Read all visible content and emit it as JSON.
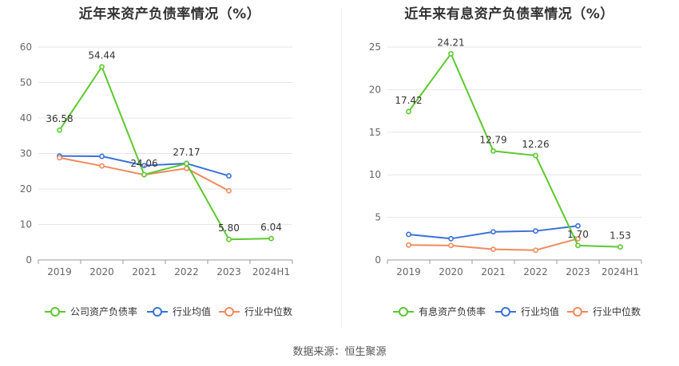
{
  "source_label": "数据来源：恒生聚源",
  "colors": {
    "company": "#5cc82f",
    "avg": "#3a71d6",
    "median": "#f08a5d",
    "grid": "#e6e6e6",
    "axis": "#999999",
    "text": "#666666"
  },
  "chart_data": [
    {
      "type": "line",
      "title": "近年来资产负债率情况（%）",
      "categories": [
        "2019",
        "2020",
        "2021",
        "2022",
        "2023",
        "2024H1"
      ],
      "ylim": [
        0,
        60
      ],
      "yticks": [
        0,
        10,
        20,
        30,
        40,
        50,
        60
      ],
      "grid": true,
      "legend_position": "bottom",
      "series": [
        {
          "name": "公司资产负债率",
          "key": "company",
          "values": [
            36.58,
            54.44,
            24.06,
            27.17,
            5.8,
            6.04
          ],
          "labels": [
            "36.58",
            "54.44",
            "24.06",
            "27.17",
            "5.80",
            "6.04"
          ]
        },
        {
          "name": "行业均值",
          "key": "avg",
          "values": [
            29.3,
            29.2,
            26.6,
            27.2,
            23.7,
            null
          ]
        },
        {
          "name": "行业中位数",
          "key": "median",
          "values": [
            28.8,
            26.5,
            24.0,
            25.8,
            19.5,
            null
          ]
        }
      ]
    },
    {
      "type": "line",
      "title": "近年来有息资产负债率情况（%）",
      "categories": [
        "2019",
        "2020",
        "2021",
        "2022",
        "2023",
        "2024H1"
      ],
      "ylim": [
        0,
        25
      ],
      "yticks": [
        0,
        5,
        10,
        15,
        20,
        25
      ],
      "grid": true,
      "legend_position": "bottom",
      "series": [
        {
          "name": "有息资产负债率",
          "key": "company",
          "values": [
            17.42,
            24.21,
            12.79,
            12.26,
            1.7,
            1.53
          ],
          "labels": [
            "17.42",
            "24.21",
            "12.79",
            "12.26",
            "1.70",
            "1.53"
          ]
        },
        {
          "name": "行业均值",
          "key": "avg",
          "values": [
            3.0,
            2.5,
            3.3,
            3.4,
            4.0,
            null
          ]
        },
        {
          "name": "行业中位数",
          "key": "median",
          "values": [
            1.75,
            1.7,
            1.25,
            1.15,
            2.5,
            null
          ]
        }
      ]
    }
  ]
}
